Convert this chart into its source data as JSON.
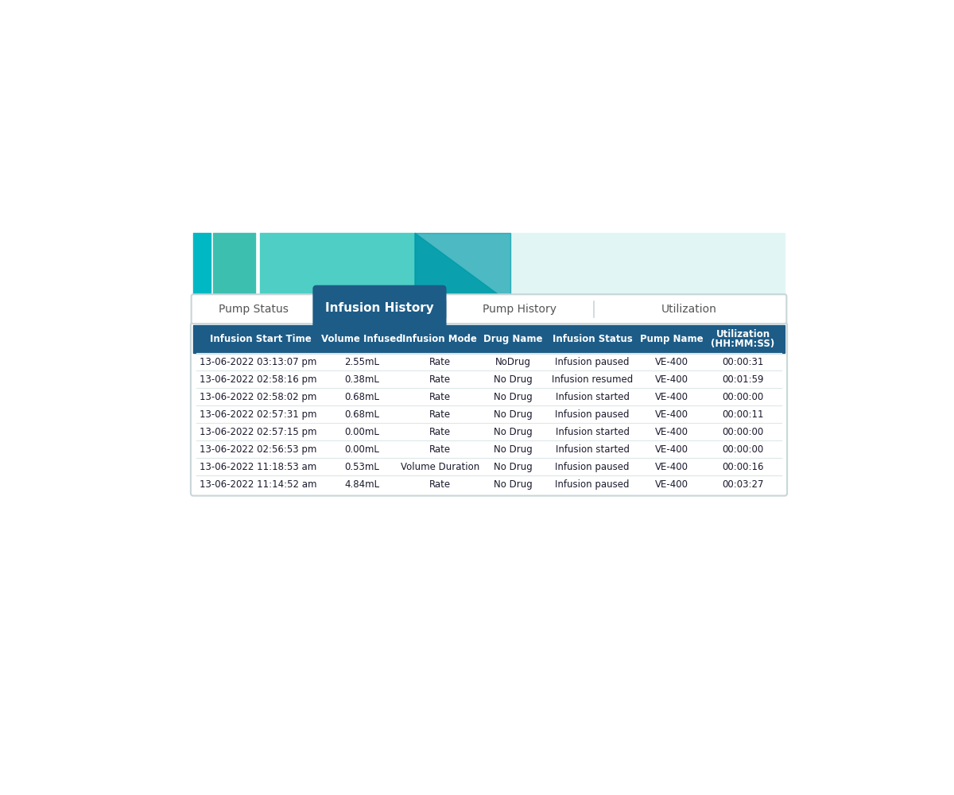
{
  "title": "Infusion History",
  "tabs": [
    "Pump Status",
    "Infusion History",
    "Pump History",
    "Utilization"
  ],
  "active_tab": "Infusion History",
  "columns": [
    "Infusion Start Time",
    "Volume Infused",
    "Infusion Mode",
    "Drug Name",
    "Infusion Status",
    "Pump Name",
    "Utilization\n(HH:MM:SS)"
  ],
  "rows": [
    [
      "13-06-2022 03:13:07 pm",
      "2.55mL",
      "Rate",
      "NoDrug",
      "Infusion paused",
      "VE-400",
      "00:00:31"
    ],
    [
      "13-06-2022 02:58:16 pm",
      "0.38mL",
      "Rate",
      "No Drug",
      "Infusion resumed",
      "VE-400",
      "00:01:59"
    ],
    [
      "13-06-2022 02:58:02 pm",
      "0.68mL",
      "Rate",
      "No Drug",
      "Infusion started",
      "VE-400",
      "00:00:00"
    ],
    [
      "13-06-2022 02:57:31 pm",
      "0.68mL",
      "Rate",
      "No Drug",
      "Infusion paused",
      "VE-400",
      "00:00:11"
    ],
    [
      "13-06-2022 02:57:15 pm",
      "0.00mL",
      "Rate",
      "No Drug",
      "Infusion started",
      "VE-400",
      "00:00:00"
    ],
    [
      "13-06-2022 02:56:53 pm",
      "0.00mL",
      "Rate",
      "No Drug",
      "Infusion started",
      "VE-400",
      "00:00:00"
    ],
    [
      "13-06-2022 11:18:53 am",
      "0.53mL",
      "Volume Duration",
      "No Drug",
      "Infusion paused",
      "VE-400",
      "00:00:16"
    ],
    [
      "13-06-2022 11:14:52 am",
      "4.84mL",
      "Rate",
      "No Drug",
      "Infusion paused",
      "VE-400",
      "00:03:27"
    ]
  ],
  "bg_color": "#ffffff",
  "header_bg": "#1d5c87",
  "header_text": "#ffffff",
  "row_bg_white": "#ffffff",
  "row_text": "#1a1a2e",
  "tab_active_bg": "#1d5c87",
  "tab_active_text": "#ffffff",
  "tab_inactive_bg": "#ffffff",
  "tab_inactive_text": "#555555",
  "tab_border": "#c8d6d8",
  "col_props": [
    0.228,
    0.115,
    0.148,
    0.1,
    0.168,
    0.1,
    0.141
  ],
  "teal1": "#00b8c4",
  "teal2": "#3dbfb0",
  "teal3": "#4ecec5",
  "teal_dark": "#009caa",
  "light_teal": "#e2f5f5",
  "light_teal2": "#cceef0"
}
